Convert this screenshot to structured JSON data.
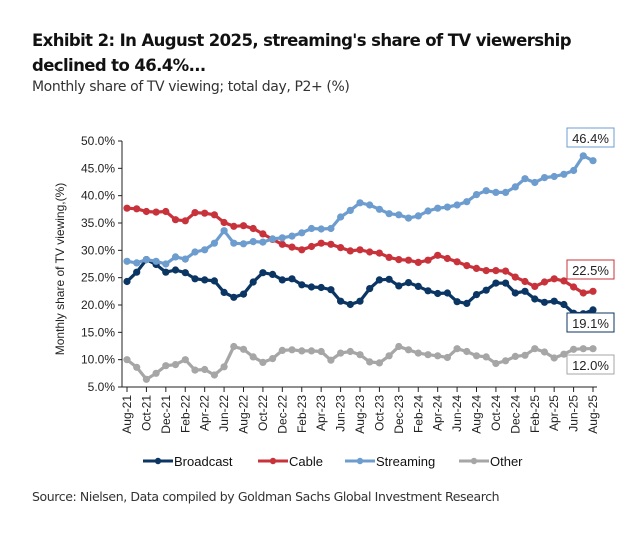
{
  "header": {
    "title": "Exhibit 2: In August 2025, streaming's share of TV viewership declined to 46.4%...",
    "subtitle": "Monthly share of TV viewing; total day, P2+ (%)"
  },
  "footer": {
    "source": "Source: Nielsen, Data compiled by Goldman Sachs Global Investment Research"
  },
  "chart_data": {
    "type": "line",
    "title": "Exhibit 2: In August 2025, streaming's share of TV viewership declined to 46.4%...",
    "subtitle": "Monthly share of TV viewing; total day, P2+ (%)",
    "xlabel": "",
    "ylabel": "Monthly share of TV viewing,(%)",
    "ylim": [
      5,
      50
    ],
    "yticks": [
      "5.0%",
      "10.0%",
      "15.0%",
      "20.0%",
      "25.0%",
      "30.0%",
      "35.0%",
      "40.0%",
      "45.0%",
      "50.0%"
    ],
    "ytick_values": [
      5,
      10,
      15,
      20,
      25,
      30,
      35,
      40,
      45,
      50
    ],
    "grid": false,
    "legend_position": "bottom",
    "x": [
      "Aug-21",
      "Sep-21",
      "Oct-21",
      "Nov-21",
      "Dec-21",
      "Jan-22",
      "Feb-22",
      "Mar-22",
      "Apr-22",
      "May-22",
      "Jun-22",
      "Jul-22",
      "Aug-22",
      "Sep-22",
      "Oct-22",
      "Nov-22",
      "Dec-22",
      "Jan-23",
      "Feb-23",
      "Mar-23",
      "Apr-23",
      "May-23",
      "Jun-23",
      "Jul-23",
      "Aug-23",
      "Sep-23",
      "Oct-23",
      "Nov-23",
      "Dec-23",
      "Jan-24",
      "Feb-24",
      "Mar-24",
      "Apr-24",
      "May-24",
      "Jun-24",
      "Jul-24",
      "Aug-24",
      "Sep-24",
      "Oct-24",
      "Nov-24",
      "Dec-24",
      "Jan-25",
      "Feb-25",
      "Mar-25",
      "Apr-25",
      "May-25",
      "Jun-25",
      "Jul-25",
      "Aug-25"
    ],
    "xtick_labels": [
      "Aug-21",
      "Oct-21",
      "Dec-21",
      "Feb-22",
      "Apr-22",
      "Jun-22",
      "Aug-22",
      "Oct-22",
      "Dec-22",
      "Feb-23",
      "Apr-23",
      "Jun-23",
      "Aug-23",
      "Oct-23",
      "Dec-23",
      "Feb-24",
      "Apr-24",
      "Jun-24",
      "Aug-24",
      "Oct-24",
      "Dec-24",
      "Feb-25",
      "Apr-25",
      "Jun-25",
      "Aug-25"
    ],
    "series": [
      {
        "name": "Broadcast",
        "color": "#0b3563",
        "end_label": "19.1%",
        "values": [
          24.3,
          26.0,
          28.3,
          27.4,
          26.0,
          26.4,
          25.9,
          24.8,
          24.6,
          24.4,
          22.3,
          21.4,
          22.0,
          24.2,
          25.9,
          25.6,
          24.6,
          24.8,
          23.7,
          23.3,
          23.2,
          22.8,
          20.7,
          20.1,
          20.7,
          23.0,
          24.6,
          24.7,
          23.5,
          24.1,
          23.4,
          22.6,
          22.1,
          22.2,
          20.6,
          20.3,
          21.9,
          22.7,
          24.0,
          24.0,
          22.2,
          22.5,
          21.1,
          20.5,
          20.7,
          20.1,
          18.5,
          18.4,
          19.1
        ]
      },
      {
        "name": "Cable",
        "color": "#c8333b",
        "end_label": "22.5%",
        "values": [
          37.7,
          37.6,
          37.1,
          37.0,
          37.1,
          35.6,
          35.4,
          36.9,
          36.8,
          36.5,
          35.1,
          34.4,
          34.5,
          34.0,
          33.0,
          32.0,
          31.1,
          30.6,
          30.1,
          30.7,
          31.3,
          31.1,
          30.5,
          29.9,
          30.1,
          29.7,
          29.5,
          28.7,
          28.3,
          28.2,
          27.8,
          28.2,
          29.1,
          28.5,
          27.9,
          27.2,
          26.7,
          26.3,
          26.3,
          26.2,
          25.1,
          24.3,
          23.4,
          24.2,
          24.8,
          24.4,
          23.3,
          22.2,
          22.5
        ]
      },
      {
        "name": "Streaming",
        "color": "#6d9ccf",
        "end_label": "46.4%",
        "values": [
          28.0,
          27.7,
          28.3,
          28.0,
          27.5,
          28.8,
          28.4,
          29.7,
          30.1,
          31.3,
          33.6,
          31.3,
          31.2,
          31.6,
          31.5,
          32.1,
          32.3,
          32.6,
          33.2,
          34.0,
          33.9,
          34.0,
          36.1,
          37.3,
          38.7,
          38.3,
          37.5,
          36.7,
          36.5,
          35.9,
          36.3,
          37.2,
          37.7,
          37.9,
          38.3,
          38.9,
          40.2,
          40.9,
          40.6,
          40.6,
          41.6,
          43.1,
          42.4,
          43.3,
          43.5,
          43.9,
          44.6,
          47.3,
          46.4
        ]
      },
      {
        "name": "Other",
        "color": "#a6a6a6",
        "end_label": "12.0%",
        "values": [
          10.0,
          8.6,
          6.4,
          7.5,
          8.9,
          9.1,
          10.0,
          8.1,
          8.2,
          7.2,
          8.7,
          12.4,
          11.9,
          10.5,
          9.5,
          10.2,
          11.7,
          11.8,
          11.6,
          11.6,
          11.5,
          9.9,
          11.2,
          11.5,
          10.9,
          9.6,
          9.4,
          10.7,
          12.4,
          11.8,
          11.2,
          10.9,
          10.7,
          10.4,
          12.0,
          11.5,
          10.7,
          10.5,
          9.3,
          9.8,
          10.6,
          10.8,
          12.0,
          11.4,
          10.3,
          11.0,
          11.9,
          12.0,
          12.0
        ]
      }
    ]
  }
}
